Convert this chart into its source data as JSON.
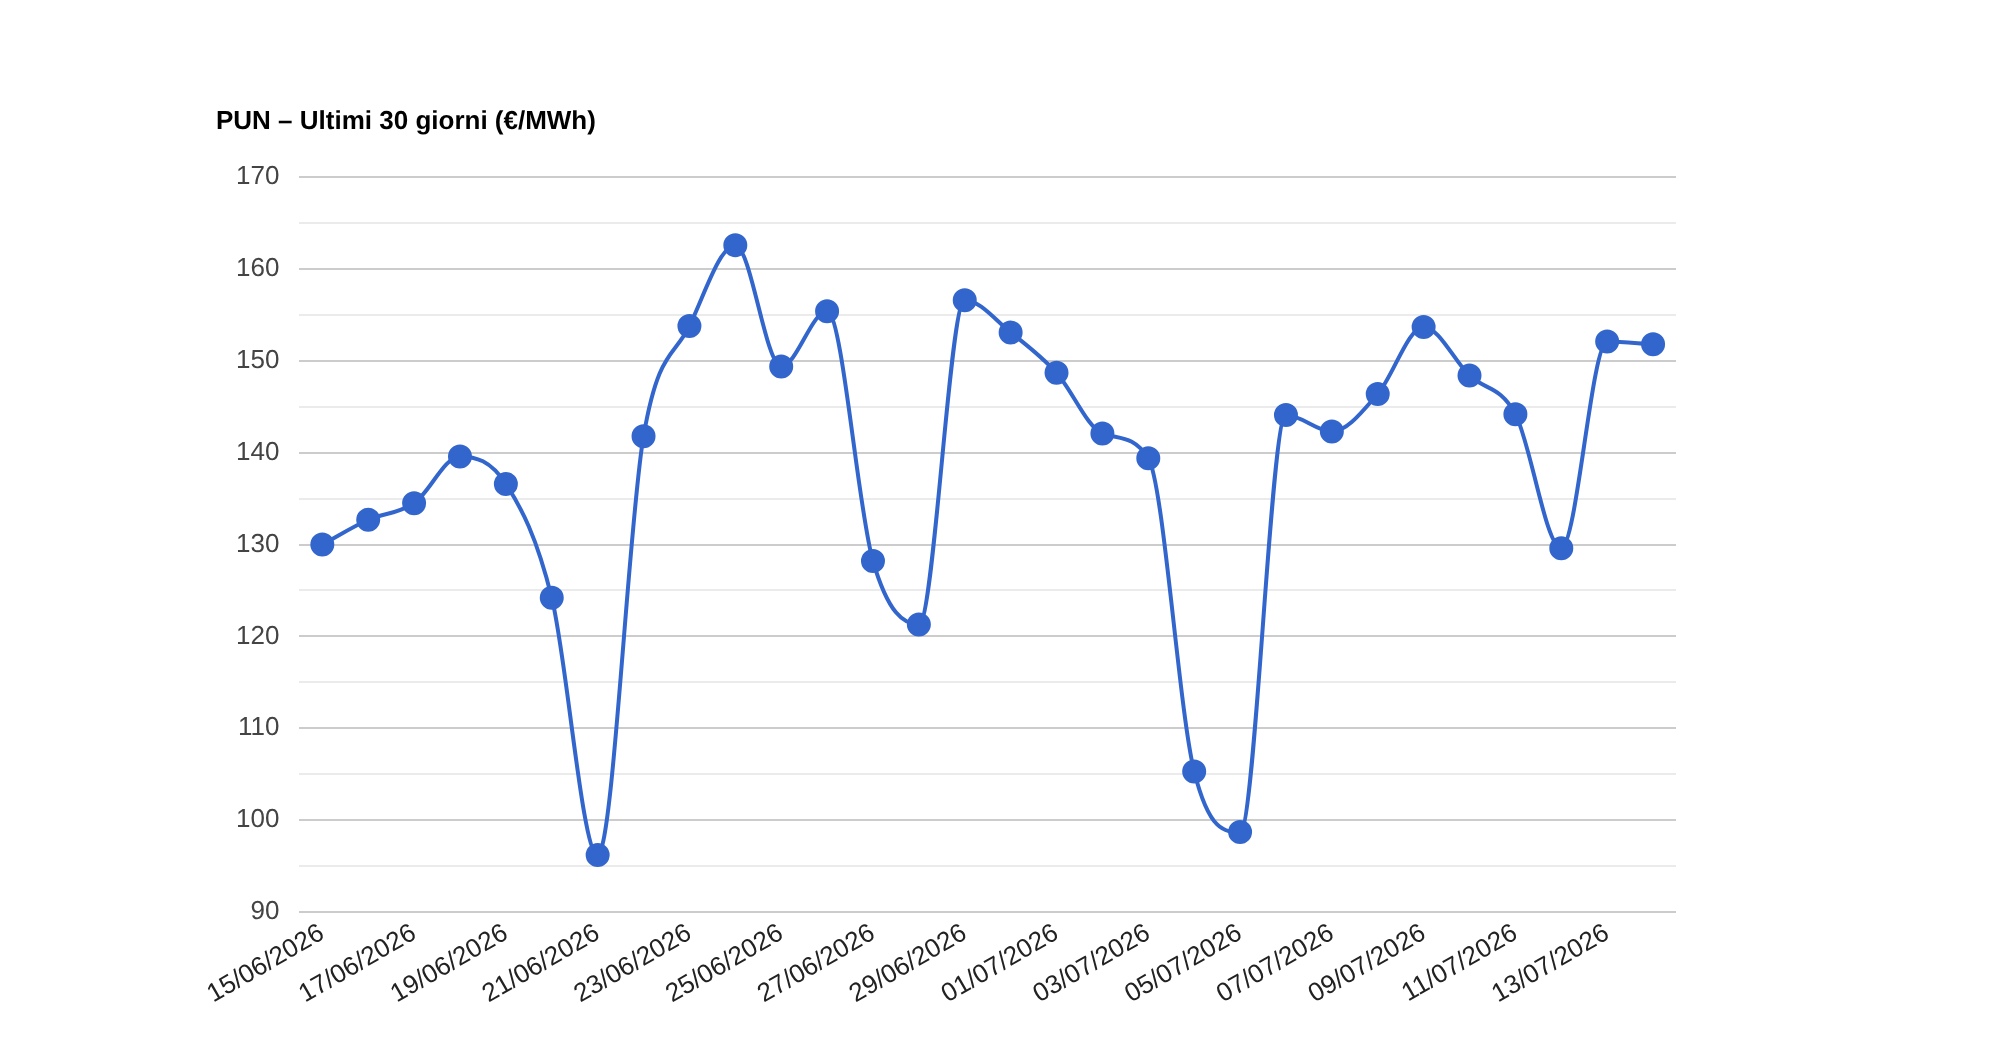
{
  "chart_data": {
    "type": "line",
    "title": "PUN – Ultimi 30 giorni (€/MWh)",
    "categories": [
      "15/06/2026",
      null,
      "17/06/2026",
      null,
      "19/06/2026",
      null,
      "21/06/2026",
      null,
      "23/06/2026",
      null,
      "25/06/2026",
      null,
      "27/06/2026",
      null,
      "29/06/2026",
      null,
      "01/07/2026",
      null,
      "03/07/2026",
      null,
      "05/07/2026",
      null,
      "07/07/2026",
      null,
      "09/07/2026",
      null,
      "11/07/2026",
      null,
      "13/07/2026",
      null
    ],
    "series": [
      {
        "color": "#3366cc",
        "values": [
          130,
          132.7,
          134.5,
          139.6,
          136.6,
          124.2,
          96.2,
          141.8,
          153.8,
          162.6,
          149.4,
          155.4,
          128.2,
          121.3,
          156.6,
          153.1,
          148.7,
          142.1,
          139.4,
          105.3,
          98.7,
          144.1,
          142.3,
          146.4,
          153.7,
          148.4,
          144.2,
          129.6,
          152.1,
          151.8
        ]
      }
    ],
    "ylim": [
      90,
      170
    ],
    "yticks": [
      90,
      {
        "value": 95,
        "label": null
      },
      100,
      {
        "value": 105,
        "label": null
      },
      110,
      {
        "value": 115,
        "label": null
      },
      120,
      {
        "value": 125,
        "label": null
      },
      130,
      {
        "value": 135,
        "label": null
      },
      140,
      {
        "value": 145,
        "label": null
      },
      150,
      {
        "value": 155,
        "label": null
      },
      160,
      {
        "value": 165,
        "label": null
      },
      170
    ],
    "grid": true,
    "legend": false,
    "marker": "circle",
    "line_style": "solid"
  }
}
